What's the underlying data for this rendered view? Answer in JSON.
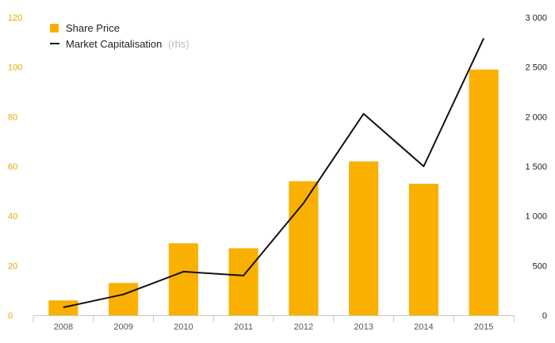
{
  "chart_data": {
    "type": "bar",
    "categories": [
      "2008",
      "2009",
      "2010",
      "2011",
      "2012",
      "2013",
      "2014",
      "2015"
    ],
    "series": [
      {
        "name": "Share Price",
        "type": "bar",
        "axis": "left",
        "color": "#f9b000",
        "values": [
          6,
          13,
          29,
          27,
          54,
          62,
          53,
          99
        ]
      },
      {
        "name": "Market Capitalisation",
        "name_note": "(rhs)",
        "type": "line",
        "axis": "right",
        "color": "#111111",
        "values": [
          80,
          210,
          440,
          400,
          1130,
          2030,
          1500,
          2790
        ]
      }
    ],
    "y_left": {
      "min": 0,
      "max": 120,
      "ticks": [
        "0",
        "20",
        "40",
        "60",
        "80",
        "100",
        "120"
      ],
      "color": "#f0a500"
    },
    "y_right": {
      "min": 0,
      "max": 3000,
      "ticks": [
        "0",
        "500",
        "1 000",
        "1 500",
        "2 000",
        "2 500",
        "3 000"
      ],
      "color": "#222222"
    },
    "grid": false,
    "legend": "top-left"
  }
}
